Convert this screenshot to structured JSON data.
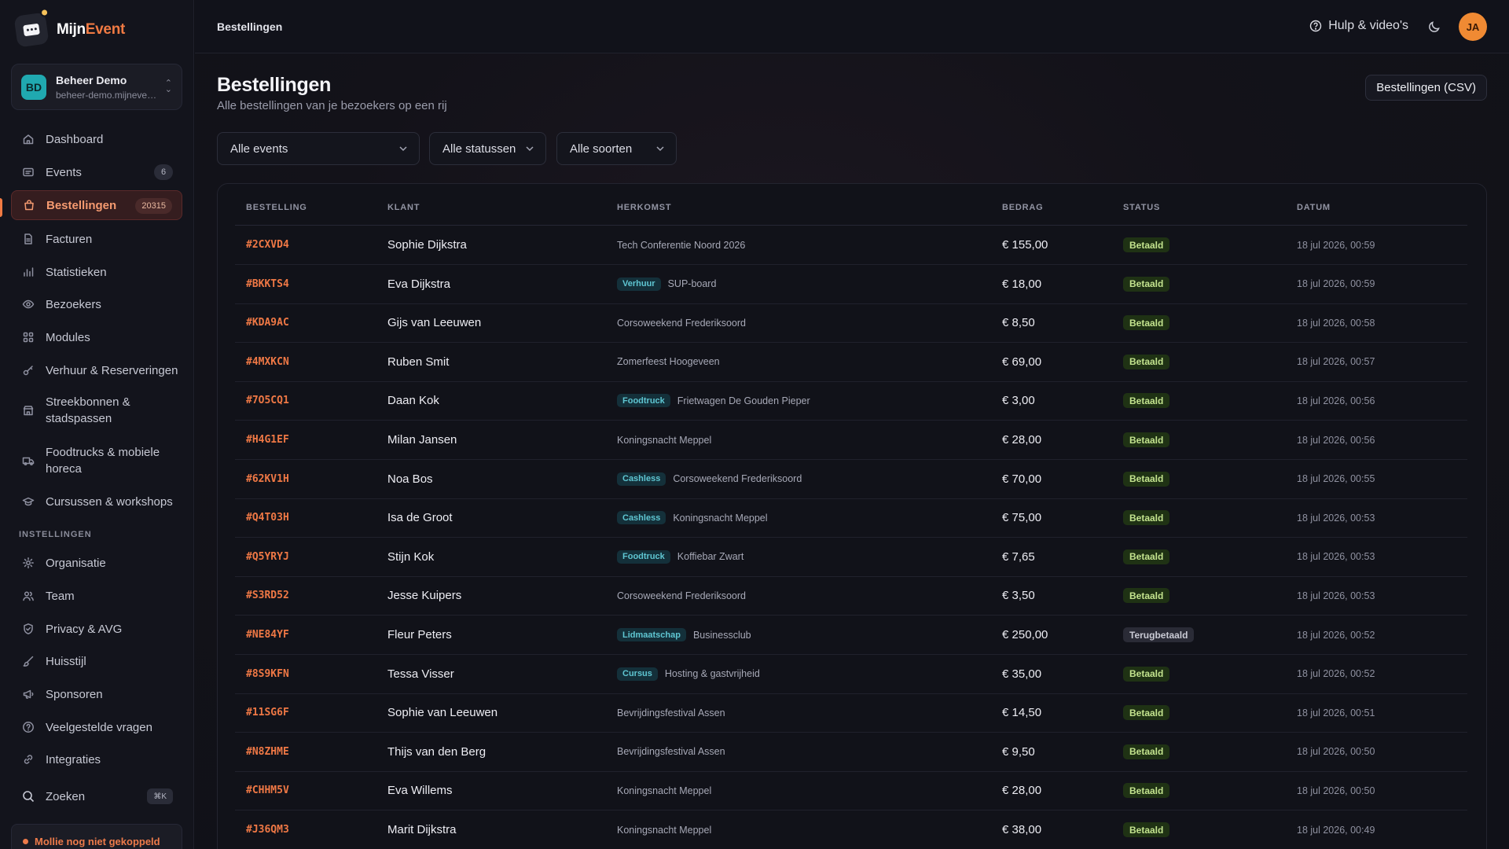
{
  "app": {
    "logo_part1": "Mijn",
    "logo_part2": "Event",
    "brand_color": "#f07a43"
  },
  "org": {
    "initials": "BD",
    "name": "Beheer Demo",
    "domain": "beheer-demo.mijnevent.nl"
  },
  "sidebar": {
    "items": [
      {
        "label": "Dashboard",
        "icon": "home-icon"
      },
      {
        "label": "Events",
        "icon": "events-icon",
        "badge": "6"
      },
      {
        "label": "Bestellingen",
        "icon": "bag-icon",
        "badge": "20315",
        "active": true
      },
      {
        "label": "Facturen",
        "icon": "document-icon"
      },
      {
        "label": "Statistieken",
        "icon": "bar-chart-icon"
      },
      {
        "label": "Bezoekers",
        "icon": "eye-icon"
      },
      {
        "label": "Modules",
        "icon": "grid-icon"
      },
      {
        "label": "Verhuur & Reserveringen",
        "icon": "key-icon"
      },
      {
        "label": "Streekbonnen & stadspassen",
        "icon": "store-icon"
      },
      {
        "label": "Foodtrucks & mobiele horeca",
        "icon": "truck-icon"
      },
      {
        "label": "Cursussen & workshops",
        "icon": "graduation-cap-icon"
      }
    ],
    "settings_heading": "INSTELLINGEN",
    "settings": [
      {
        "label": "Organisatie",
        "icon": "gear-icon"
      },
      {
        "label": "Team",
        "icon": "users-icon"
      },
      {
        "label": "Privacy & AVG",
        "icon": "shield-icon"
      },
      {
        "label": "Huisstijl",
        "icon": "brush-icon"
      },
      {
        "label": "Sponsoren",
        "icon": "megaphone-icon"
      },
      {
        "label": "Veelgestelde vragen",
        "icon": "help-circle-icon"
      },
      {
        "label": "Integraties",
        "icon": "link-icon"
      }
    ],
    "search": {
      "label": "Zoeken",
      "shortcut": "⌘K"
    },
    "mollie_notice": "Mollie nog niet gekoppeld"
  },
  "topbar": {
    "breadcrumb": "Bestellingen",
    "help_label": "Hulp & video's",
    "user_initials": "JA"
  },
  "page": {
    "title": "Bestellingen",
    "subtitle": "Alle bestellingen van je bezoekers op een rij",
    "export_button": "Bestellingen (CSV)"
  },
  "filters": {
    "events": "Alle events",
    "statuses": "Alle statussen",
    "types": "Alle soorten"
  },
  "table": {
    "columns": [
      "BESTELLING",
      "KLANT",
      "HERKOMST",
      "BEDRAG",
      "STATUS",
      "DATUM"
    ],
    "rows": [
      {
        "id": "#2CXVD4",
        "name": "Sophie Dijkstra",
        "tag": "",
        "origin": "Tech Conferentie Noord 2026",
        "amount": "€ 155,00",
        "status": "Betaald",
        "status_kind": "paid",
        "date": "18 jul 2026, 00:59"
      },
      {
        "id": "#BKKTS4",
        "name": "Eva Dijkstra",
        "tag": "Verhuur",
        "origin": "SUP-board",
        "amount": "€ 18,00",
        "status": "Betaald",
        "status_kind": "paid",
        "date": "18 jul 2026, 00:59"
      },
      {
        "id": "#KDA9AC",
        "name": "Gijs van Leeuwen",
        "tag": "",
        "origin": "Corsoweekend Frederiksoord",
        "amount": "€ 8,50",
        "status": "Betaald",
        "status_kind": "paid",
        "date": "18 jul 2026, 00:58"
      },
      {
        "id": "#4MXKCN",
        "name": "Ruben Smit",
        "tag": "",
        "origin": "Zomerfeest Hoogeveen",
        "amount": "€ 69,00",
        "status": "Betaald",
        "status_kind": "paid",
        "date": "18 jul 2026, 00:57"
      },
      {
        "id": "#7O5CQ1",
        "name": "Daan Kok",
        "tag": "Foodtruck",
        "origin": "Frietwagen De Gouden Pieper",
        "amount": "€ 3,00",
        "status": "Betaald",
        "status_kind": "paid",
        "date": "18 jul 2026, 00:56"
      },
      {
        "id": "#H4G1EF",
        "name": "Milan Jansen",
        "tag": "",
        "origin": "Koningsnacht Meppel",
        "amount": "€ 28,00",
        "status": "Betaald",
        "status_kind": "paid",
        "date": "18 jul 2026, 00:56"
      },
      {
        "id": "#62KV1H",
        "name": "Noa Bos",
        "tag": "Cashless",
        "origin": "Corsoweekend Frederiksoord",
        "amount": "€ 70,00",
        "status": "Betaald",
        "status_kind": "paid",
        "date": "18 jul 2026, 00:55"
      },
      {
        "id": "#Q4T03H",
        "name": "Isa de Groot",
        "tag": "Cashless",
        "origin": "Koningsnacht Meppel",
        "amount": "€ 75,00",
        "status": "Betaald",
        "status_kind": "paid",
        "date": "18 jul 2026, 00:53"
      },
      {
        "id": "#Q5YRYJ",
        "name": "Stijn Kok",
        "tag": "Foodtruck",
        "origin": "Koffiebar Zwart",
        "amount": "€ 7,65",
        "status": "Betaald",
        "status_kind": "paid",
        "date": "18 jul 2026, 00:53"
      },
      {
        "id": "#S3RD52",
        "name": "Jesse Kuipers",
        "tag": "",
        "origin": "Corsoweekend Frederiksoord",
        "amount": "€ 3,50",
        "status": "Betaald",
        "status_kind": "paid",
        "date": "18 jul 2026, 00:53"
      },
      {
        "id": "#NE84YF",
        "name": "Fleur Peters",
        "tag": "Lidmaatschap",
        "origin": "Businessclub",
        "amount": "€ 250,00",
        "status": "Terugbetaald",
        "status_kind": "refunded",
        "date": "18 jul 2026, 00:52"
      },
      {
        "id": "#8S9KFN",
        "name": "Tessa Visser",
        "tag": "Cursus",
        "origin": "Hosting & gastvrijheid",
        "amount": "€ 35,00",
        "status": "Betaald",
        "status_kind": "paid",
        "date": "18 jul 2026, 00:52"
      },
      {
        "id": "#11SG6F",
        "name": "Sophie van Leeuwen",
        "tag": "",
        "origin": "Bevrijdingsfestival Assen",
        "amount": "€ 14,50",
        "status": "Betaald",
        "status_kind": "paid",
        "date": "18 jul 2026, 00:51"
      },
      {
        "id": "#N8ZHME",
        "name": "Thijs van den Berg",
        "tag": "",
        "origin": "Bevrijdingsfestival Assen",
        "amount": "€ 9,50",
        "status": "Betaald",
        "status_kind": "paid",
        "date": "18 jul 2026, 00:50"
      },
      {
        "id": "#CHHM5V",
        "name": "Eva Willems",
        "tag": "",
        "origin": "Koningsnacht Meppel",
        "amount": "€ 28,00",
        "status": "Betaald",
        "status_kind": "paid",
        "date": "18 jul 2026, 00:50"
      },
      {
        "id": "#J36QM3",
        "name": "Marit Dijkstra",
        "tag": "",
        "origin": "Koningsnacht Meppel",
        "amount": "€ 38,00",
        "status": "Betaald",
        "status_kind": "paid",
        "date": "18 jul 2026, 00:49"
      }
    ]
  }
}
